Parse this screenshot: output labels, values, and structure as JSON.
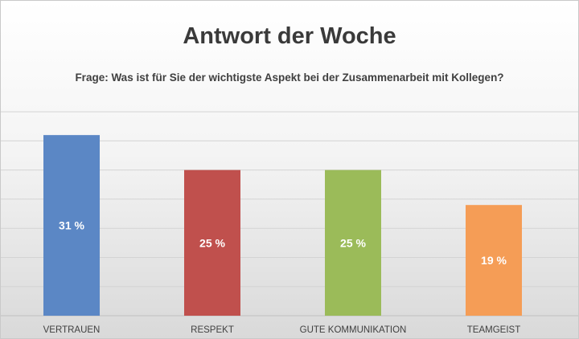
{
  "chart_data": {
    "type": "bar",
    "title": "Antwort der Woche",
    "subtitle": "Frage: Was ist für Sie der wichtigste Aspekt bei der Zusammenarbeit mit Kollegen?",
    "categories": [
      "VERTRAUEN",
      "RESPEKT",
      "GUTE KOMMUNIKATION",
      "TEAMGEIST"
    ],
    "values": [
      31,
      25,
      25,
      19
    ],
    "value_labels": [
      "31 %",
      "25 %",
      "25 %",
      "19 %"
    ],
    "colors": [
      "#5B87C5",
      "#C0504D",
      "#9BBB59",
      "#F59D56"
    ],
    "ylim": [
      0,
      37.5
    ],
    "grid": true,
    "legend": "none"
  }
}
